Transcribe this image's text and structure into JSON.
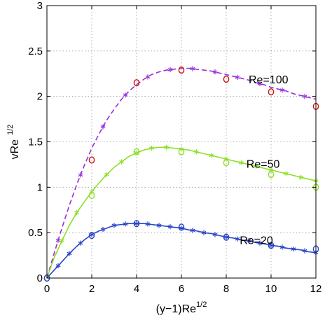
{
  "chart_data": {
    "type": "line",
    "xlabel": {
      "base": "(y−1)Re",
      "sup": "1/2"
    },
    "ylabel": {
      "base": "vRe",
      "sup": "1/2"
    },
    "xlim": [
      0,
      12
    ],
    "ylim": [
      0,
      3
    ],
    "xticks": [
      "0",
      "2",
      "4",
      "6",
      "8",
      "10",
      "12"
    ],
    "yticks": [
      "0",
      "0.5",
      "1",
      "1.5",
      "2",
      "2.5",
      "3"
    ],
    "grid": true,
    "series": [
      {
        "name": "Re=100",
        "line_color": "#9b30d9",
        "line_style": "dashed",
        "marker": "asterisk",
        "x": [
          0,
          0.33,
          0.67,
          1.0,
          1.33,
          1.67,
          2.0,
          2.33,
          2.67,
          3.0,
          3.33,
          3.67,
          4.0,
          4.33,
          4.67,
          5.0,
          5.33,
          5.67,
          6.0,
          6.33,
          6.67,
          7.0,
          7.33,
          7.67,
          8.0,
          8.33,
          8.67,
          9.0,
          9.33,
          9.67,
          10.0,
          10.33,
          10.67,
          11.0,
          11.33,
          11.67,
          12.0
        ],
        "values": [
          0,
          0.28,
          0.55,
          0.8,
          1.03,
          1.24,
          1.43,
          1.59,
          1.74,
          1.86,
          1.97,
          2.06,
          2.13,
          2.19,
          2.24,
          2.27,
          2.29,
          2.3,
          2.31,
          2.31,
          2.3,
          2.29,
          2.28,
          2.26,
          2.24,
          2.22,
          2.2,
          2.18,
          2.15,
          2.13,
          2.1,
          2.08,
          2.06,
          2.03,
          2.01,
          1.99,
          1.97
        ],
        "marker_x": [
          0.5,
          1.5,
          2.5,
          3.5,
          4.5,
          5.5,
          6.5,
          7.5,
          8.5,
          9.5,
          10.5,
          11.5
        ],
        "reference": {
          "color": "#cc1111",
          "x": [
            0,
            2,
            4,
            6,
            8,
            10,
            12
          ],
          "values": [
            0,
            1.3,
            2.15,
            2.29,
            2.19,
            2.05,
            1.89
          ]
        },
        "label": "Re=100"
      },
      {
        "name": "Re=50",
        "line_color": "#8ee02a",
        "line_style": "solid",
        "marker": "asterisk",
        "x": [
          0,
          0.33,
          0.67,
          1.0,
          1.33,
          1.67,
          2.0,
          2.33,
          2.67,
          3.0,
          3.33,
          3.67,
          4.0,
          4.33,
          4.67,
          5.0,
          5.33,
          5.67,
          6.0,
          6.33,
          6.67,
          7.0,
          7.33,
          7.67,
          8.0,
          8.33,
          8.67,
          9.0,
          9.33,
          9.67,
          10.0,
          10.33,
          10.67,
          11.0,
          11.33,
          11.67,
          12.0
        ],
        "values": [
          0,
          0.23,
          0.41,
          0.58,
          0.72,
          0.84,
          0.95,
          1.05,
          1.14,
          1.22,
          1.28,
          1.34,
          1.38,
          1.41,
          1.43,
          1.44,
          1.44,
          1.43,
          1.42,
          1.41,
          1.39,
          1.37,
          1.35,
          1.33,
          1.31,
          1.29,
          1.27,
          1.25,
          1.23,
          1.21,
          1.19,
          1.17,
          1.15,
          1.13,
          1.11,
          1.09,
          1.07
        ],
        "marker_x": [
          0.67,
          1.33,
          2.0,
          2.67,
          3.33,
          4.0,
          4.67,
          5.33,
          6.0,
          6.67,
          7.33,
          8.0,
          8.67,
          9.33,
          10.0,
          10.67,
          11.33,
          12.0
        ],
        "reference": {
          "color": "#8ee02a",
          "x": [
            0,
            2,
            4,
            6,
            8,
            10,
            12
          ],
          "values": [
            0,
            0.91,
            1.39,
            1.39,
            1.27,
            1.14,
            1.0
          ]
        },
        "label": "Re=50"
      },
      {
        "name": "Re=20",
        "line_color": "#2b45c8",
        "line_style": "solid",
        "marker": "asterisk",
        "x": [
          0,
          0.33,
          0.67,
          1.0,
          1.33,
          1.67,
          2.0,
          2.33,
          2.67,
          3.0,
          3.33,
          3.67,
          4.0,
          4.33,
          4.67,
          5.0,
          5.33,
          5.67,
          6.0,
          6.33,
          6.67,
          7.0,
          7.33,
          7.67,
          8.0,
          8.33,
          8.67,
          9.0,
          9.33,
          9.67,
          10.0,
          10.33,
          10.67,
          11.0,
          11.33,
          11.67,
          12.0
        ],
        "values": [
          0,
          0.09,
          0.18,
          0.27,
          0.35,
          0.42,
          0.48,
          0.52,
          0.55,
          0.58,
          0.59,
          0.6,
          0.6,
          0.6,
          0.59,
          0.58,
          0.57,
          0.56,
          0.55,
          0.53,
          0.52,
          0.5,
          0.49,
          0.47,
          0.45,
          0.44,
          0.42,
          0.41,
          0.39,
          0.38,
          0.36,
          0.35,
          0.33,
          0.32,
          0.31,
          0.29,
          0.28
        ],
        "marker_x": [
          0.5,
          1.0,
          1.5,
          2.0,
          2.5,
          3.0,
          3.5,
          4.0,
          4.5,
          5.0,
          5.5,
          6.0,
          6.5,
          7.0,
          7.5,
          8.0,
          8.5,
          9.0,
          9.5,
          10.0,
          10.5,
          11.0,
          11.5,
          12.0
        ],
        "reference": {
          "color": "#2b45c8",
          "x": [
            0,
            2,
            4,
            6,
            8,
            10,
            12
          ],
          "values": [
            0,
            0.47,
            0.6,
            0.56,
            0.45,
            0.36,
            0.32
          ]
        },
        "label": "Re=20"
      }
    ],
    "annotations": [
      {
        "text": "Re=100",
        "x": 9.0,
        "y": 2.19
      },
      {
        "text": "Re=50",
        "x": 8.9,
        "y": 1.26
      },
      {
        "text": "Re=20",
        "x": 8.6,
        "y": 0.42
      }
    ]
  }
}
